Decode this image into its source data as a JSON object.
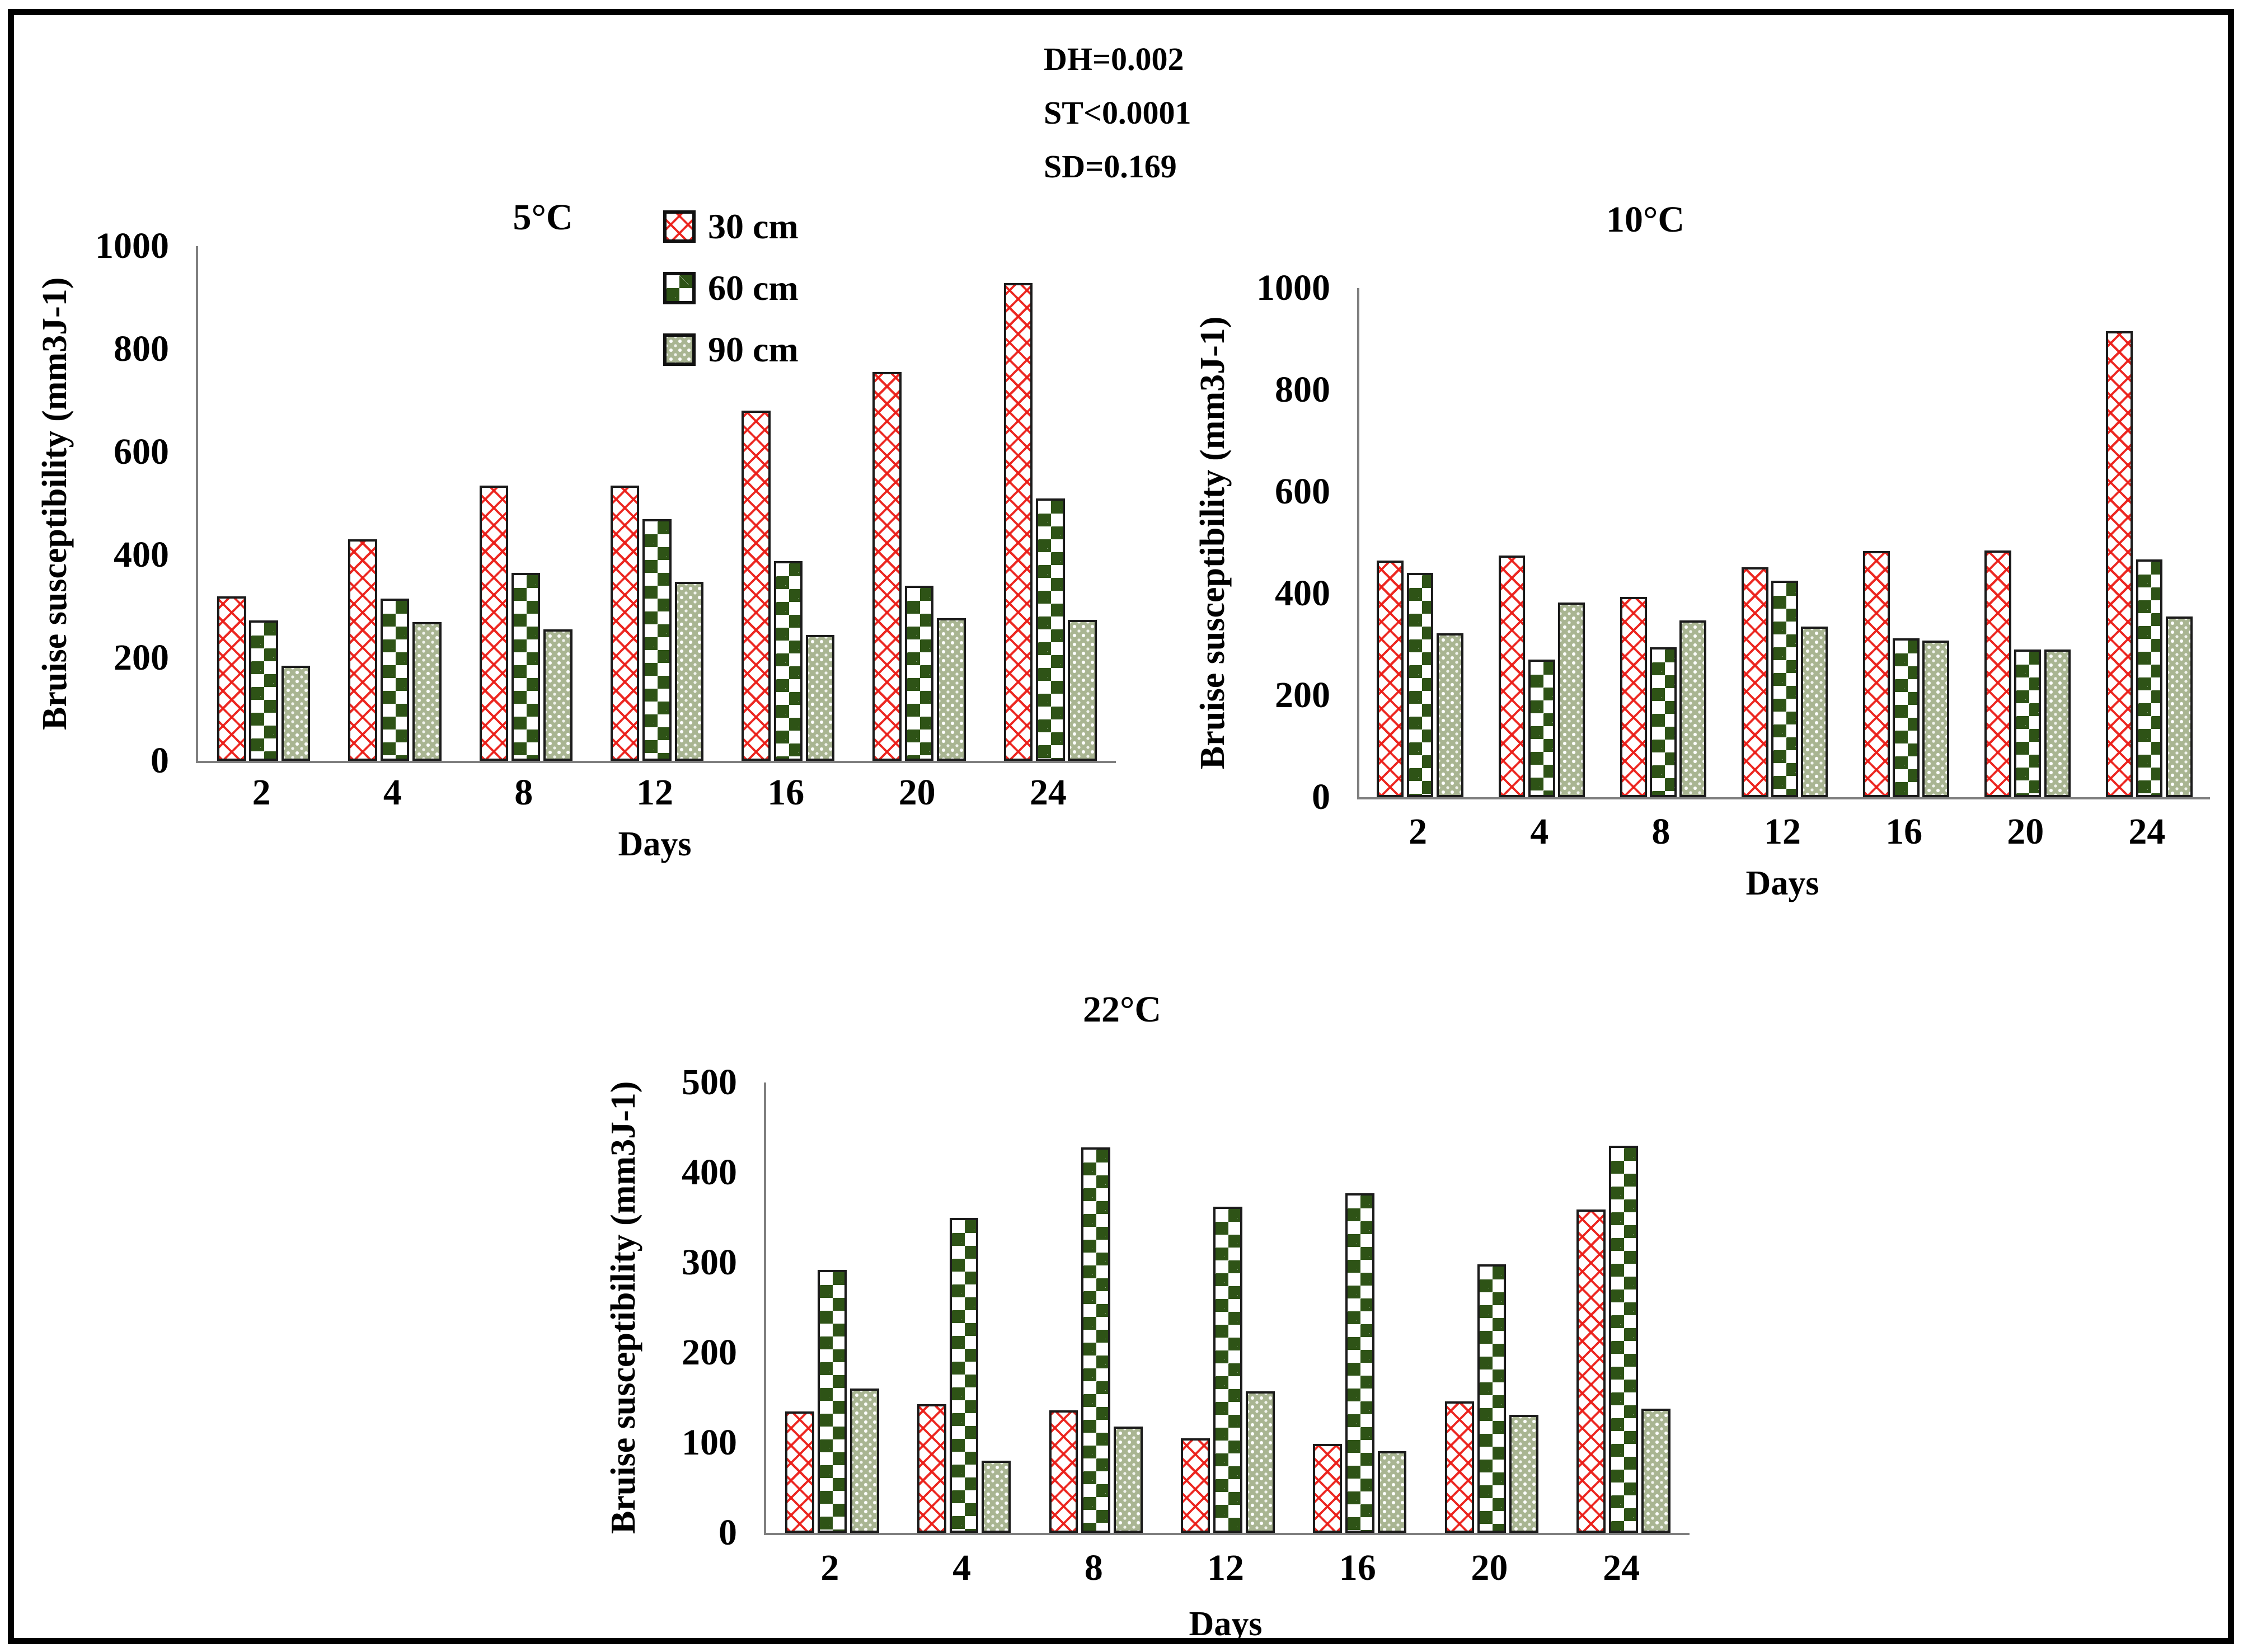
{
  "figure": {
    "stats": [
      "DH=0.002",
      "ST<0.0001",
      "SD=0.169"
    ],
    "legend": [
      {
        "label": "30 cm",
        "series": "s30",
        "swatch": "red-diagonal-crosshatch"
      },
      {
        "label": "60 cm",
        "series": "s60",
        "swatch": "dark-green-checkerboard"
      },
      {
        "label": "90 cm",
        "series": "s90",
        "swatch": "sage-dotted"
      }
    ],
    "colors": {
      "hatch_red": "#eb1c16",
      "checker_green": "#2e5316",
      "dot_sage": "#a9b592",
      "axis_gray": "#7f7f7f",
      "border_black": "#000000"
    }
  },
  "chart_data": [
    {
      "type": "bar",
      "title": "5°C",
      "x_title": "Days",
      "y_title": "Bruise susceptibility (mm3J-1)",
      "categories": [
        "2",
        "4",
        "8",
        "12",
        "16",
        "20",
        "24"
      ],
      "ylim": [
        0,
        1000
      ],
      "yticks": [
        0,
        200,
        400,
        600,
        800,
        1000
      ],
      "grid": false,
      "legend_position": "top-center",
      "series": [
        {
          "name": "30 cm",
          "values": [
            320,
            430,
            535,
            535,
            680,
            755,
            928
          ]
        },
        {
          "name": "60 cm",
          "values": [
            273,
            315,
            365,
            470,
            388,
            340,
            510
          ]
        },
        {
          "name": "90 cm",
          "values": [
            185,
            270,
            255,
            348,
            245,
            277,
            274
          ]
        }
      ]
    },
    {
      "type": "bar",
      "title": "10°C",
      "x_title": "Days",
      "y_title": "Bruise susceptibility (mm3J-1)",
      "categories": [
        "2",
        "4",
        "8",
        "12",
        "16",
        "20",
        "24"
      ],
      "ylim": [
        0,
        1000
      ],
      "yticks": [
        0,
        200,
        400,
        600,
        800,
        1000
      ],
      "grid": false,
      "series": [
        {
          "name": "30 cm",
          "values": [
            465,
            475,
            393,
            452,
            483,
            485,
            915
          ]
        },
        {
          "name": "60 cm",
          "values": [
            441,
            270,
            295,
            425,
            312,
            290,
            467
          ]
        },
        {
          "name": "90 cm",
          "values": [
            322,
            382,
            347,
            335,
            308,
            290,
            355
          ]
        }
      ]
    },
    {
      "type": "bar",
      "title": "22°C",
      "x_title": "Days",
      "y_title": "Bruise susceptibility (mm3J-1)",
      "categories": [
        "2",
        "4",
        "8",
        "12",
        "16",
        "20",
        "24"
      ],
      "ylim": [
        0,
        500
      ],
      "yticks": [
        0,
        100,
        200,
        300,
        400,
        500
      ],
      "grid": false,
      "series": [
        {
          "name": "30 cm",
          "values": [
            135,
            143,
            136,
            105,
            99,
            146,
            359
          ]
        },
        {
          "name": "60 cm",
          "values": [
            292,
            350,
            428,
            362,
            377,
            298,
            430
          ]
        },
        {
          "name": "90 cm",
          "values": [
            160,
            80,
            118,
            157,
            91,
            131,
            138
          ]
        }
      ]
    }
  ]
}
